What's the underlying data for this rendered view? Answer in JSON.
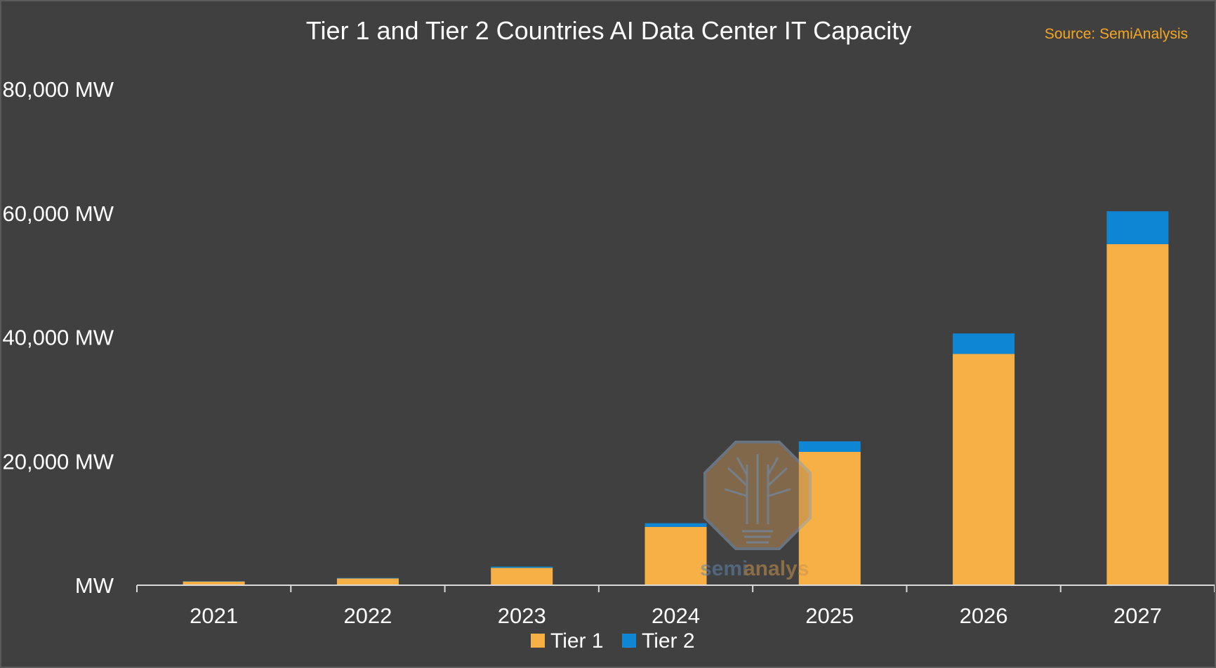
{
  "chart_data": {
    "type": "bar",
    "stacked": true,
    "title": "Tier 1 and Tier 2 Countries AI Data Center IT Capacity",
    "source": "Source: SemiAnalysis",
    "categories": [
      "2021",
      "2022",
      "2023",
      "2024",
      "2025",
      "2026",
      "2027"
    ],
    "series": [
      {
        "name": "Tier 1",
        "color": "#F7B045",
        "values": [
          600,
          1100,
          2800,
          9400,
          21500,
          37300,
          55000
        ]
      },
      {
        "name": "Tier 2",
        "color": "#0F86D4",
        "values": [
          50,
          80,
          200,
          600,
          1700,
          3300,
          5300
        ]
      }
    ],
    "yticks": [
      {
        "value": 0,
        "label": "MW"
      },
      {
        "value": 20000,
        "label": "20,000 MW"
      },
      {
        "value": 40000,
        "label": "40,000 MW"
      },
      {
        "value": 60000,
        "label": "60,000 MW"
      },
      {
        "value": 80000,
        "label": "80,000 MW"
      }
    ],
    "ylim": [
      0,
      80000
    ],
    "grid": false,
    "legend_position": "bottom-center",
    "watermark": "semianalysis",
    "colors": {
      "background": "#404040",
      "text": "#FFFFFF",
      "source": "#F5A623",
      "axis": "#D9D9D9"
    }
  }
}
